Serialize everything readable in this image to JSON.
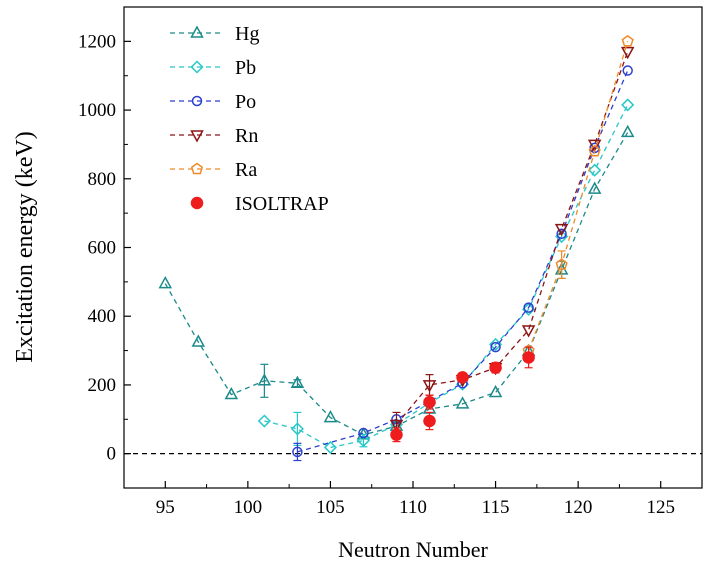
{
  "chart_data": {
    "type": "scatter",
    "title": "",
    "xlabel": "Neutron Number",
    "ylabel": "Excitation energy (keV)",
    "xlim": [
      92.5,
      127.5
    ],
    "ylim": [
      -100,
      1300
    ],
    "xticks": [
      95,
      100,
      105,
      110,
      115,
      120,
      125
    ],
    "yticks": [
      0,
      200,
      400,
      600,
      800,
      1000,
      1200
    ],
    "reference_line": {
      "y": 0,
      "style": "dashed"
    },
    "legend_position": "top-left",
    "grid": false,
    "series": [
      {
        "name": "Hg",
        "color": "#1a8a8a",
        "marker": "triangle-up",
        "line": "dashed",
        "x": [
          95,
          97,
          99,
          101,
          103,
          105,
          107,
          109,
          111,
          113,
          115,
          117,
          119,
          121,
          123
        ],
        "y": [
          495,
          325,
          172,
          212,
          205,
          105,
          55,
          80,
          130,
          145,
          178,
          298,
          535,
          770,
          935
        ],
        "err": [
          0,
          0,
          0,
          48,
          10,
          0,
          0,
          0,
          0,
          0,
          0,
          0,
          25,
          0,
          0
        ]
      },
      {
        "name": "Pb",
        "color": "#27c8c8",
        "marker": "diamond",
        "line": "dashed",
        "x": [
          101,
          103,
          105,
          107,
          109,
          111,
          113,
          115,
          117,
          119,
          121,
          123
        ],
        "y": [
          95,
          72,
          18,
          38,
          85,
          148,
          202,
          318,
          420,
          632,
          825,
          1015
        ],
        "err": [
          0,
          48,
          0,
          18,
          0,
          0,
          0,
          0,
          0,
          0,
          0,
          0
        ]
      },
      {
        "name": "Po",
        "color": "#2b3fd1",
        "marker": "circle",
        "line": "dashed",
        "x": [
          103,
          107,
          109,
          113,
          115,
          117,
          119,
          121,
          123
        ],
        "y": [
          5,
          60,
          100,
          205,
          310,
          425,
          640,
          890,
          1115
        ],
        "err": [
          25,
          0,
          0,
          0,
          0,
          0,
          0,
          0,
          0
        ]
      },
      {
        "name": "Rn",
        "color": "#8b1414",
        "marker": "triangle-down",
        "line": "dashed",
        "x": [
          109,
          111,
          113,
          115,
          117,
          119,
          121,
          123
        ],
        "y": [
          85,
          200,
          215,
          250,
          360,
          655,
          900,
          1170
        ],
        "err": [
          35,
          30,
          0,
          0,
          0,
          0,
          0,
          0
        ]
      },
      {
        "name": "Ra",
        "color": "#f08a28",
        "marker": "pentagon",
        "line": "dashed",
        "x": [
          117,
          119,
          121,
          123
        ],
        "y": [
          300,
          550,
          880,
          1200
        ],
        "err": [
          0,
          40,
          0,
          0
        ]
      },
      {
        "name": "ISOLTRAP",
        "color": "#ee1c1c",
        "marker": "filled-circle",
        "line": "none",
        "x": [
          109,
          111,
          111,
          113,
          115,
          117
        ],
        "y": [
          55,
          150,
          95,
          222,
          250,
          280
        ],
        "err": [
          20,
          20,
          25,
          10,
          15,
          30
        ]
      }
    ]
  }
}
